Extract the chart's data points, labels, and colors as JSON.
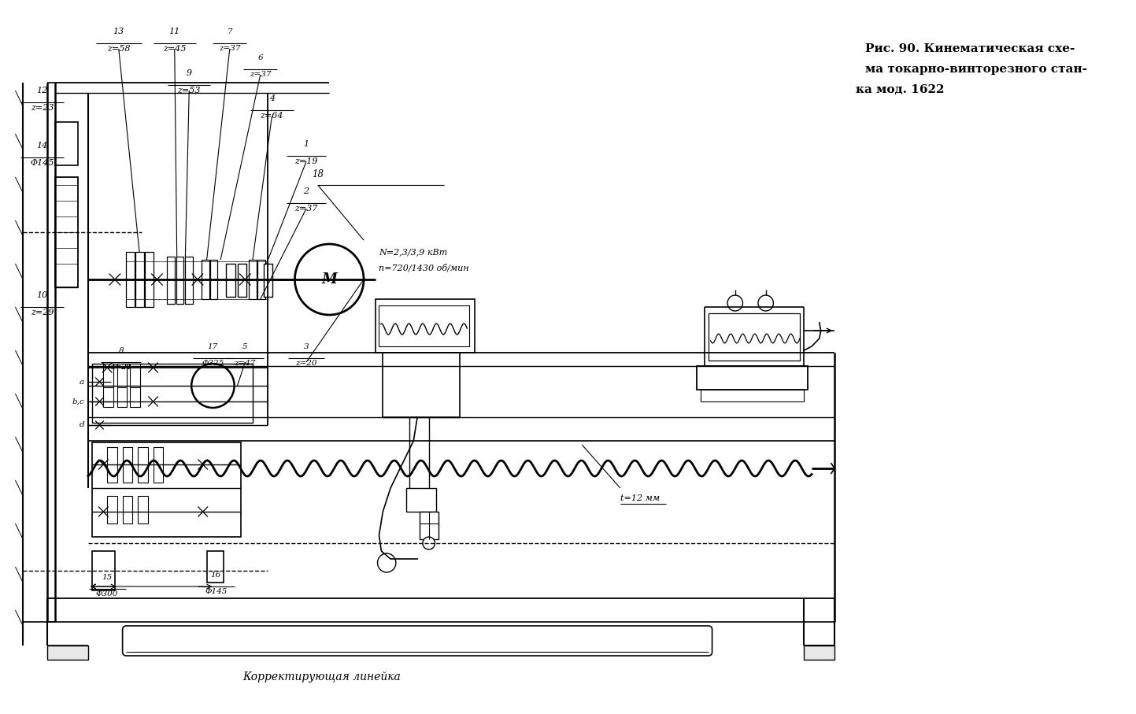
{
  "title_line1": "Рис. 90. Кинематическая схе-",
  "title_line2": "ма токарно-винторезного стан-",
  "title_line3": "ка мод. 1622",
  "bg_color": "#ffffff",
  "line_color": "#000000",
  "motor_text1": "N=2,3/3,9 кВт",
  "motor_text2": "n=720/1430 об/мин",
  "t_label": "t=12 мм",
  "korr_label": "Корректирующая линейка"
}
